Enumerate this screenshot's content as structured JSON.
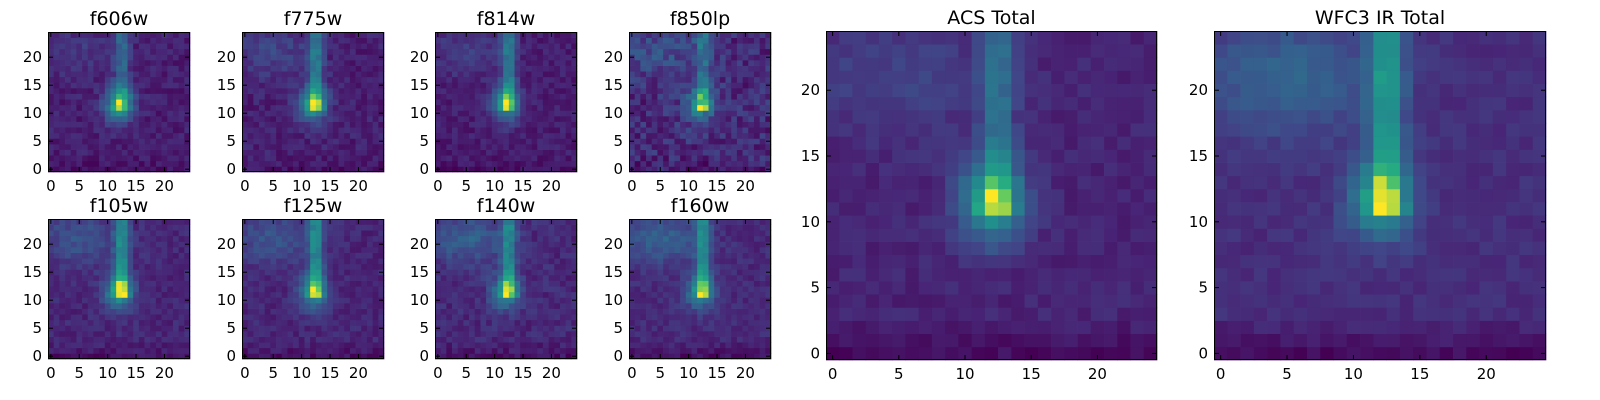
{
  "figure": {
    "panels": [
      {
        "key": "f606w",
        "title": "f606w",
        "size": "small",
        "map": {
          "core": 2.0,
          "stem": 1.0,
          "stemTop": 24,
          "halo": 0.3,
          "noise": 0.22,
          "floor": 0.25,
          "dipRows": 0.05
        }
      },
      {
        "key": "f775w",
        "title": "f775w",
        "size": "small",
        "map": {
          "core": 1.8,
          "stem": 1.2,
          "stemTop": 24,
          "halo": 0.45,
          "noise": 0.22,
          "floor": 0.28,
          "dipRows": 0.05
        }
      },
      {
        "key": "f814w",
        "title": "f814w",
        "size": "small",
        "map": {
          "core": 1.7,
          "stem": 1.3,
          "stemTop": 24,
          "halo": 0.4,
          "noise": 0.2,
          "floor": 0.25,
          "dipRows": 0.05
        }
      },
      {
        "key": "f850lp",
        "title": "f850lp",
        "size": "small",
        "map": {
          "core": 1.3,
          "stem": 0.8,
          "stemTop": 24,
          "halo": 0.4,
          "noise": 0.3,
          "floor": 0.3,
          "dipRows": 0.05
        }
      },
      {
        "key": "f105w",
        "title": "f105w",
        "size": "small",
        "map": {
          "core": 1.6,
          "stem": 1.3,
          "stemTop": 24,
          "halo": 0.55,
          "noise": 0.18,
          "floor": 0.3,
          "dipRows": 0.08
        }
      },
      {
        "key": "f125w",
        "title": "f125w",
        "size": "small",
        "map": {
          "core": 1.5,
          "stem": 1.3,
          "stemTop": 24,
          "halo": 0.6,
          "noise": 0.18,
          "floor": 0.32,
          "dipRows": 0.08
        }
      },
      {
        "key": "f140w",
        "title": "f140w",
        "size": "small",
        "map": {
          "core": 1.4,
          "stem": 1.2,
          "stemTop": 24,
          "halo": 0.7,
          "noise": 0.2,
          "floor": 0.35,
          "dipRows": 0.08
        }
      },
      {
        "key": "f160w",
        "title": "f160w",
        "size": "small",
        "map": {
          "core": 1.4,
          "stem": 1.4,
          "stemTop": 24,
          "halo": 0.75,
          "noise": 0.18,
          "floor": 0.35,
          "dipRows": 0.1
        }
      },
      {
        "key": "acs_total",
        "title": "ACS Total",
        "size": "large",
        "map": {
          "core": 2.1,
          "stem": 1.1,
          "stemTop": 24,
          "halo": 0.45,
          "noise": 0.16,
          "floor": 0.3,
          "dipRows": 0.1
        }
      },
      {
        "key": "wfc3_ir_total",
        "title": "WFC3 IR Total",
        "size": "large",
        "map": {
          "core": 1.6,
          "stem": 1.6,
          "stemTop": 24,
          "halo": 0.8,
          "noise": 0.14,
          "floor": 0.32,
          "dipRows": 0.14
        }
      }
    ]
  },
  "chart_data": {
    "type": "heatmap",
    "colormap": "viridis",
    "grid": false,
    "image_shape": [
      25,
      25
    ],
    "xlim": [
      -0.5,
      24.5
    ],
    "ylim": [
      -0.5,
      24.5
    ],
    "small_xticks": [
      0,
      5,
      10,
      15,
      20
    ],
    "small_yticks": [
      0,
      5,
      10,
      15,
      20
    ],
    "large_xticks": [
      0,
      5,
      10,
      15,
      20
    ],
    "large_yticks": [
      0,
      5,
      10,
      15,
      20
    ],
    "source_features": {
      "core_center": [
        12,
        11.5
      ],
      "vertical_stem_x": 12.5,
      "vertical_stem_y_range": [
        12,
        24
      ],
      "upper_left_halo": [
        5,
        21
      ]
    },
    "titles": [
      "f606w",
      "f775w",
      "f814w",
      "f850lp",
      "f105w",
      "f125w",
      "f140w",
      "f160w",
      "ACS Total",
      "WFC3 IR Total"
    ]
  }
}
